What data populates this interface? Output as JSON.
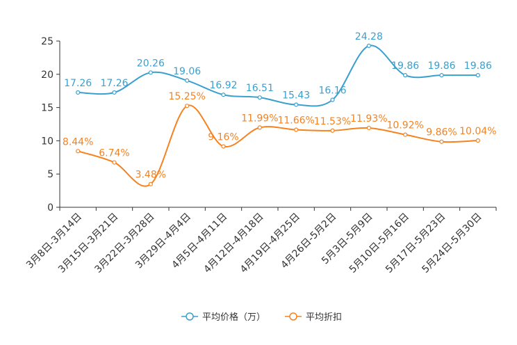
{
  "chart_data": {
    "type": "line",
    "title": "",
    "xlabel": "",
    "ylabel": "",
    "ylim": [
      0,
      25
    ],
    "yticks": [
      0,
      5,
      10,
      15,
      20,
      25
    ],
    "grid": false,
    "legend_position": "bottom-center",
    "categories": [
      "3月8日-3月14日",
      "3月15日-3月21日",
      "3月22日-3月28日",
      "3月29日-4月4日",
      "4月5日-4月11日",
      "4月12日-4月18日",
      "4月19日-4月25日",
      "4月26日-5月2日",
      "5月3日-5月9日",
      "5月10日-5月16日",
      "5月17日-5月23日",
      "5月24日-5月30日"
    ],
    "series": [
      {
        "name": "平均价格（万）",
        "color": "#3a9fcf",
        "values": [
          17.26,
          17.26,
          20.26,
          19.06,
          16.92,
          16.51,
          15.43,
          16.16,
          24.28,
          19.86,
          19.86,
          19.86
        ],
        "labels": [
          "17.26",
          "17.26",
          "20.26",
          "19.06",
          "16.92",
          "16.51",
          "15.43",
          "16.16",
          "24.28",
          "19.86",
          "19.86",
          "19.86"
        ]
      },
      {
        "name": "平均折扣",
        "color": "#f5821f",
        "values": [
          8.44,
          6.74,
          3.48,
          15.25,
          9.16,
          11.99,
          11.66,
          11.53,
          11.93,
          10.92,
          9.86,
          10.04
        ],
        "labels": [
          "8.44%",
          "6.74%",
          "3.48%",
          "15.25%",
          "9.16%",
          "11.99%",
          "11.66%",
          "11.53%",
          "11.93%",
          "10.92%",
          "9.86%",
          "10.04%"
        ]
      }
    ]
  }
}
